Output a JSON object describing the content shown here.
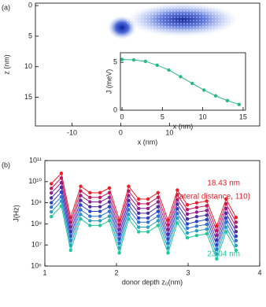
{
  "chart_data": [
    {
      "type": "image",
      "panel": "(a)",
      "xlabel": "x (nm)",
      "ylabel": "z (nm)",
      "xlim": [
        -17.5,
        28.5
      ],
      "ylim": [
        -0.4,
        19.7
      ],
      "y_inverted": true,
      "xticks": [
        -10,
        0,
        10
      ],
      "yticks": [
        0,
        5,
        10,
        15
      ]
    },
    {
      "type": "line",
      "xlabel": "x (nm)",
      "ylabel": "J (meV)",
      "xlim": [
        -0.2,
        15.3
      ],
      "ylim": [
        0,
        6
      ],
      "xticks": [
        0,
        5,
        10,
        15
      ],
      "yticks": [
        0,
        5
      ],
      "x": [
        0,
        1.45,
        2.9,
        4.35,
        5.8,
        7.25,
        8.7,
        10.15,
        11.6,
        13.05,
        14.5
      ],
      "series": [
        {
          "color": "#27b98a",
          "values": [
            5.3,
            5.25,
            5.1,
            4.7,
            4.2,
            3.5,
            2.8,
            2.1,
            1.5,
            1.0,
            0.6
          ]
        }
      ]
    },
    {
      "type": "line",
      "panel": "(b)",
      "xlabel": "donor depth z₀(nm)",
      "ylabel": "J(Hz)",
      "log_y": true,
      "xlim": [
        1,
        4
      ],
      "ylim": [
        1000000.0,
        100000000000.0
      ],
      "xticks": [
        1,
        2,
        3,
        4
      ],
      "yticks": [
        {
          "value": 1000000.0,
          "label": "10⁶"
        },
        {
          "value": 10000000.0,
          "label": "10⁷"
        },
        {
          "value": 100000000.0,
          "label": "10⁸"
        },
        {
          "value": 1000000000.0,
          "label": "10⁹"
        },
        {
          "value": 10000000000.0,
          "label": "10¹⁰"
        },
        {
          "value": 100000000000.0,
          "label": "10¹¹"
        }
      ],
      "x": [
        1.09,
        1.23,
        1.36,
        1.5,
        1.63,
        1.77,
        1.9,
        2.04,
        2.17,
        2.31,
        2.44,
        2.58,
        2.72,
        2.85,
        2.99,
        3.12,
        3.26,
        3.4,
        3.53,
        3.67
      ],
      "series": [
        {
          "color": "#e8202a",
          "values": [
            8000000000.0,
            25000000000.0,
            200000000.0,
            6000000000.0,
            3000000000.0,
            3000000000.0,
            5000000000.0,
            150000000.0,
            6000000000.0,
            1500000000.0,
            1500000000.0,
            3000000000.0,
            150000000.0,
            4000000000.0,
            800000000.0,
            1000000000.0,
            1200000000.0,
            80000000.0,
            1500000000.0,
            200000000.0
          ]
        },
        {
          "color": "#c2185b",
          "values": [
            4800000000.0,
            15000000000.0,
            120000000.0,
            3600000000.0,
            1800000000.0,
            1800000000.0,
            3000000000.0,
            90000000.0,
            3600000000.0,
            900000000.0,
            900000000.0,
            1800000000.0,
            90000000.0,
            2400000000.0,
            480000000.0,
            600000000.0,
            720000000.0,
            48000000.0,
            900000000.0,
            120000000.0
          ]
        },
        {
          "color": "#8e1f8e",
          "values": [
            2900000000.0,
            9000000000.0,
            72000000.0,
            2200000000.0,
            1100000000.0,
            1100000000.0,
            1800000000.0,
            54000000.0,
            2200000000.0,
            540000000.0,
            540000000.0,
            1100000000.0,
            54000000.0,
            1400000000.0,
            290000000.0,
            360000000.0,
            430000000.0,
            29000000.0,
            540000000.0,
            72000000.0
          ]
        },
        {
          "color": "#4a2da0",
          "values": [
            1700000000.0,
            5400000000.0,
            43000000.0,
            1300000000.0,
            650000000.0,
            650000000.0,
            1100000000.0,
            32000000.0,
            1300000000.0,
            320000000.0,
            320000000.0,
            650000000.0,
            32000000.0,
            860000000.0,
            170000000.0,
            220000000.0,
            260000000.0,
            17000000.0,
            320000000.0,
            43000000.0
          ]
        },
        {
          "color": "#2a44c8",
          "values": [
            1000000000.0,
            3200000000.0,
            26000000.0,
            780000000.0,
            390000000.0,
            390000000.0,
            650000000.0,
            19000000.0,
            780000000.0,
            190000000.0,
            190000000.0,
            390000000.0,
            19000000.0,
            520000000.0,
            100000000.0,
            130000000.0,
            160000000.0,
            10000000.0,
            190000000.0,
            26000000.0
          ]
        },
        {
          "color": "#2f72d2",
          "values": [
            620000000.0,
            1900000000.0,
            16000000.0,
            470000000.0,
            230000000.0,
            230000000.0,
            390000000.0,
            12000000.0,
            470000000.0,
            120000000.0,
            120000000.0,
            230000000.0,
            12000000.0,
            310000000.0,
            62000000.0,
            78000000.0,
            94000000.0,
            6200000.0,
            120000000.0,
            16000000.0
          ]
        },
        {
          "color": "#2a9dbf",
          "values": [
            370000000.0,
            1200000000.0,
            9400000.0,
            280000000.0,
            140000000.0,
            140000000.0,
            230000000.0,
            7000000.0,
            280000000.0,
            70000000.0,
            70000000.0,
            140000000.0,
            7000000.0,
            190000000.0,
            37000000.0,
            47000000.0,
            56000000.0,
            3700000.0,
            70000000.0,
            9400000.0
          ]
        },
        {
          "color": "#20c89c",
          "values": [
            220000000.0,
            700000000.0,
            5600000.0,
            170000000.0,
            84000000.0,
            84000000.0,
            140000000.0,
            4200000.0,
            170000000.0,
            42000000.0,
            42000000.0,
            84000000.0,
            4200000.0,
            110000000.0,
            22000000.0,
            28000000.0,
            34000000.0,
            2200000.0,
            42000000.0,
            5600000.0
          ]
        }
      ],
      "annotations": [
        {
          "text": "18.43 nm",
          "color": "#e8202a"
        },
        {
          "text": "(lateral distance, 110)",
          "color": "#e8202a"
        },
        {
          "text": "23.04 nm",
          "color": "#20c89c"
        }
      ]
    }
  ]
}
